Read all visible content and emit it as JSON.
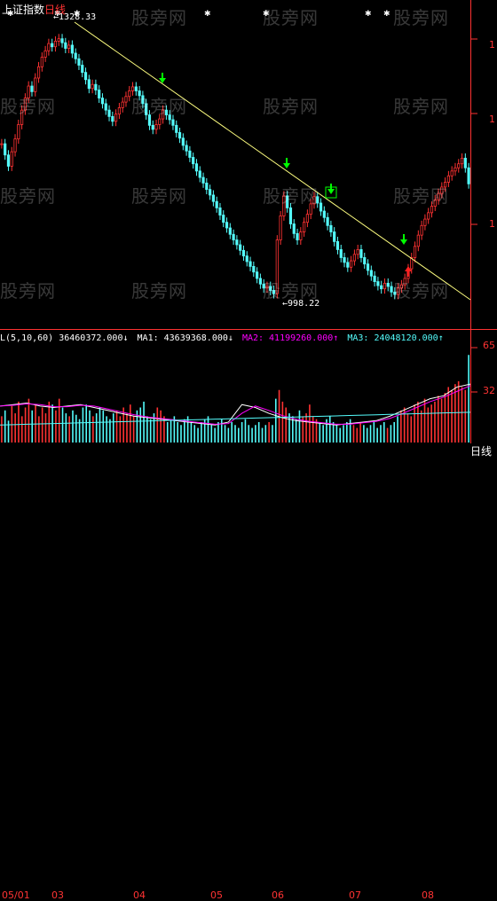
{
  "title": {
    "index_name": "上证指数",
    "period": "日线"
  },
  "price_labels": {
    "high": "1328.33",
    "low": "998.22"
  },
  "indicator": {
    "vol": "L(5,10,60) 36460372.000↓",
    "ma1": "MA1: 43639368.000↓",
    "ma2": "MA2: 41199260.000↑",
    "ma3": "MA3: 24048120.000↑"
  },
  "right_axis": {
    "main_tick": "1",
    "vol_top": "65",
    "vol_mid": "32"
  },
  "dates": [
    "05/01",
    "03",
    "04",
    "05",
    "06",
    "07",
    "08"
  ],
  "period_button": "日线",
  "watermark": "股旁网",
  "colors": {
    "up": "#ff3232",
    "down": "#54fcfc",
    "trend": "#ffff80",
    "ma1": "#ffffff",
    "ma2": "#ff00ff",
    "ma3": "#54fcfc",
    "green_arrow": "#00ff00",
    "red_arrow": "#ff2020"
  },
  "chart_data": {
    "type": "candlestick",
    "price_range": [
      960,
      1345
    ],
    "high": 1328.33,
    "low": 998.22,
    "closes": [
      1190,
      1176,
      1162,
      1180,
      1196,
      1214,
      1232,
      1247,
      1262,
      1255,
      1272,
      1286,
      1298,
      1306,
      1315,
      1311,
      1318,
      1321,
      1316,
      1309,
      1313,
      1303,
      1296,
      1288,
      1279,
      1270,
      1259,
      1264,
      1257,
      1247,
      1240,
      1232,
      1224,
      1218,
      1227,
      1235,
      1242,
      1249,
      1256,
      1261,
      1256,
      1250,
      1240,
      1226,
      1213,
      1208,
      1214,
      1221,
      1232,
      1226,
      1220,
      1213,
      1204,
      1197,
      1188,
      1181,
      1173,
      1165,
      1156,
      1148,
      1141,
      1133,
      1126,
      1118,
      1110,
      1101,
      1092,
      1085,
      1077,
      1070,
      1064,
      1057,
      1050,
      1043,
      1037,
      1030,
      1022,
      1015,
      1010,
      1012,
      1007,
      1003,
      1070,
      1100,
      1125,
      1110,
      1090,
      1078,
      1070,
      1080,
      1092,
      1102,
      1115,
      1124,
      1116,
      1106,
      1098,
      1088,
      1080,
      1068,
      1058,
      1048,
      1042,
      1036,
      1044,
      1052,
      1058,
      1048,
      1040,
      1032,
      1025,
      1018,
      1013,
      1009,
      1016,
      1012,
      1005,
      1002,
      1010,
      1014,
      1022,
      1034,
      1048,
      1062,
      1076,
      1088,
      1096,
      1104,
      1112,
      1120,
      1128,
      1136,
      1142,
      1150,
      1156,
      1160,
      1165,
      1172,
      1160,
      1140
    ],
    "volume_range": [
      0,
      65
    ],
    "volume": [
      18,
      22,
      15,
      25,
      20,
      28,
      18,
      24,
      30,
      22,
      26,
      18,
      24,
      20,
      28,
      26,
      22,
      30,
      24,
      20,
      18,
      22,
      19,
      16,
      24,
      26,
      22,
      18,
      20,
      24,
      22,
      18,
      16,
      20,
      22,
      18,
      24,
      20,
      26,
      18,
      22,
      24,
      28,
      18,
      16,
      20,
      24,
      22,
      18,
      14,
      16,
      18,
      14,
      12,
      16,
      18,
      14,
      12,
      10,
      14,
      16,
      18,
      12,
      10,
      14,
      16,
      12,
      10,
      14,
      12,
      10,
      14,
      16,
      12,
      10,
      12,
      14,
      10,
      12,
      14,
      12,
      30,
      36,
      28,
      24,
      20,
      18,
      16,
      22,
      18,
      20,
      26,
      18,
      16,
      14,
      12,
      16,
      18,
      14,
      12,
      10,
      12,
      14,
      16,
      12,
      10,
      14,
      12,
      10,
      12,
      14,
      10,
      12,
      14,
      10,
      12,
      14,
      18,
      22,
      24,
      20,
      18,
      26,
      28,
      22,
      30,
      24,
      26,
      28,
      32,
      30,
      34,
      38,
      36,
      40,
      42,
      38,
      36,
      60
    ],
    "ma_vol": [
      25,
      26,
      27,
      25,
      24,
      25,
      26,
      24,
      22,
      20,
      18,
      17,
      16,
      15,
      14,
      13,
      12,
      14,
      26,
      24,
      20,
      17,
      15,
      14,
      13,
      12,
      13,
      14,
      15,
      18,
      22,
      26,
      30,
      32,
      38,
      40
    ]
  }
}
